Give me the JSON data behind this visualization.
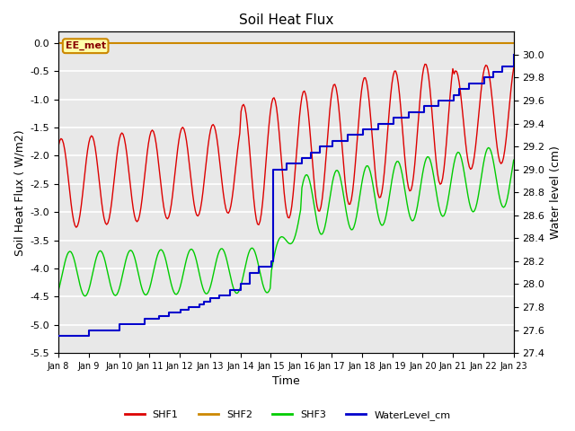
{
  "title": "Soil Heat Flux",
  "xlabel": "Time",
  "ylabel_left": "Soil Heat Flux ( W/m2)",
  "ylabel_right": "Water level (cm)",
  "ylim_left": [
    -5.5,
    0.2
  ],
  "ylim_right": [
    27.4,
    30.2
  ],
  "xtick_labels": [
    "Jan 8",
    "Jan 9",
    "Jan 10",
    "Jan 11",
    "Jan 12",
    "Jan 13",
    "Jan 14",
    "Jan 15",
    "Jan 16",
    "Jan 17",
    "Jan 18",
    "Jan 19",
    "Jan 20",
    "Jan 21",
    "Jan 22",
    "Jan 23"
  ],
  "fig_bg_color": "#ffffff",
  "plot_bg_color": "#e8e8e8",
  "grid_color": "#ffffff",
  "shf1_color": "#dd0000",
  "shf2_color": "#cc8800",
  "shf3_color": "#00cc00",
  "wl_color": "#0000cc",
  "annotation_text": "EE_met",
  "annotation_edge_color": "#cc8800",
  "annotation_face_color": "#ffffaa",
  "annotation_text_color": "#880000"
}
